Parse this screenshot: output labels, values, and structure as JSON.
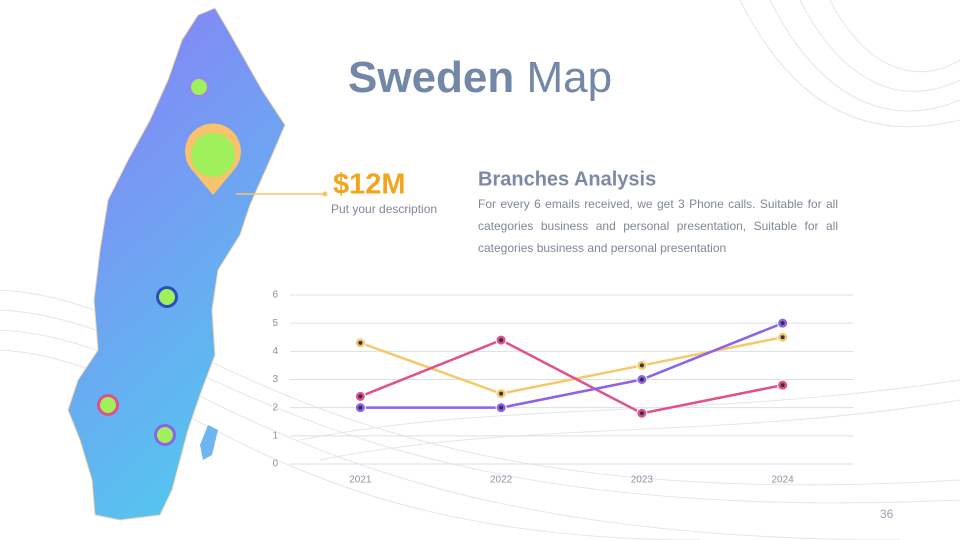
{
  "title": {
    "bold": "Sweden",
    "regular": "Map"
  },
  "callout": {
    "amount": "$12M",
    "caption": "Put your description"
  },
  "analysis": {
    "heading": "Branches Analysis",
    "text": "For every 6 emails received, we get 3 Phone calls. Suitable for all categories business and personal presentation, Suitable for all categories business and personal presentation"
  },
  "page_number": "36",
  "chart_data": {
    "type": "line",
    "categories": [
      "2021",
      "2022",
      "2023",
      "2024"
    ],
    "series": [
      {
        "color": "#f7c86a",
        "values": [
          4.3,
          2.5,
          3.5,
          4.5
        ]
      },
      {
        "color": "#e0508a",
        "values": [
          2.4,
          4.4,
          1.8,
          2.8
        ]
      },
      {
        "color": "#8a63e8",
        "values": [
          2.0,
          2.0,
          3.0,
          5.0
        ]
      }
    ],
    "ylim": [
      0,
      6
    ],
    "yticks": [
      0,
      1,
      2,
      3,
      4,
      5,
      6
    ],
    "grid": true
  }
}
